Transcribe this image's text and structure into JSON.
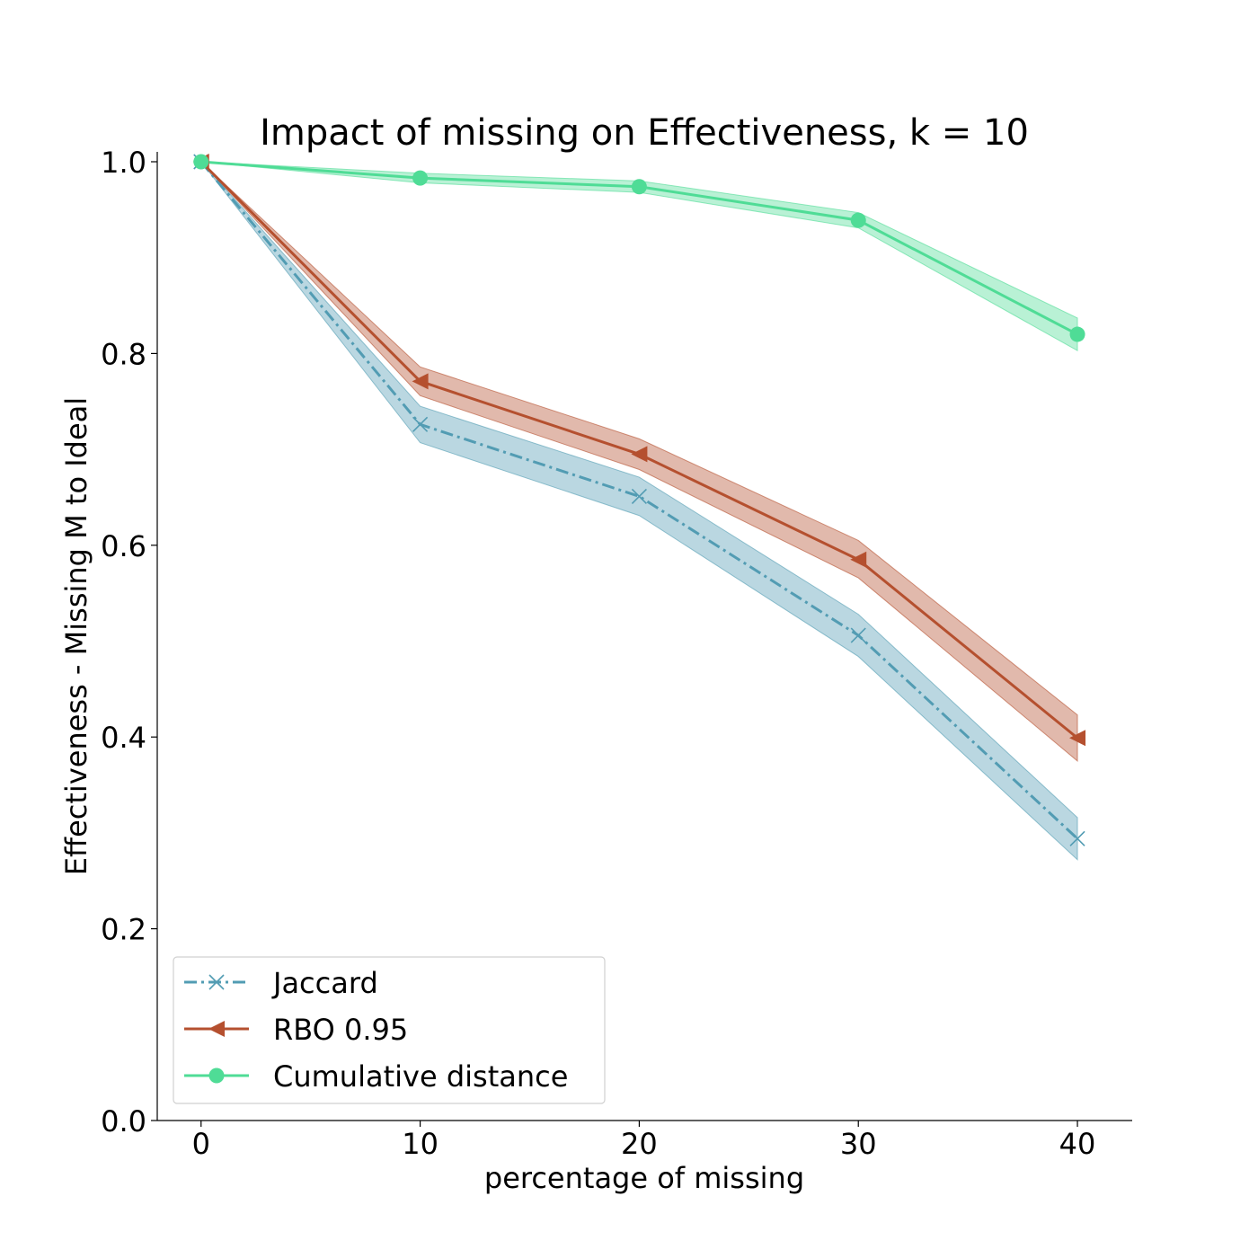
{
  "chart_data": {
    "type": "line",
    "title": "Impact of missing on Effectiveness, k = 10",
    "xlabel": "percentage of missing",
    "ylabel": "Effectiveness - Missing M to Ideal",
    "x": [
      0,
      10,
      20,
      30,
      40
    ],
    "xlim": [
      -2,
      42.5
    ],
    "ylim": [
      0.0,
      1.0
    ],
    "xticks": [
      0,
      10,
      20,
      30,
      40
    ],
    "yticks": [
      0.0,
      0.2,
      0.4,
      0.6,
      0.8,
      1.0
    ],
    "xtick_labels": [
      "0",
      "10",
      "20",
      "30",
      "40"
    ],
    "ytick_labels": [
      "0.0",
      "0.2",
      "0.4",
      "0.6",
      "0.8",
      "1.0"
    ],
    "grid": false,
    "legend_position": "lower-left",
    "series": [
      {
        "name": "Jaccard",
        "color": "#529cb3",
        "line_style": "dashdot",
        "marker": "x",
        "values": [
          1.0,
          0.726,
          0.651,
          0.506,
          0.294
        ],
        "lower": [
          1.0,
          0.707,
          0.631,
          0.484,
          0.272
        ],
        "upper": [
          1.0,
          0.745,
          0.671,
          0.528,
          0.316
        ]
      },
      {
        "name": "RBO 0.95",
        "color": "#b5502f",
        "line_style": "solid",
        "marker": "triangle-left",
        "values": [
          1.0,
          0.771,
          0.695,
          0.585,
          0.399
        ],
        "lower": [
          1.0,
          0.756,
          0.679,
          0.566,
          0.375
        ],
        "upper": [
          1.0,
          0.786,
          0.711,
          0.605,
          0.423
        ]
      },
      {
        "name": "Cumulative distance",
        "color": "#4fdc96",
        "line_style": "solid",
        "marker": "circle",
        "values": [
          1.0,
          0.983,
          0.974,
          0.939,
          0.82
        ],
        "lower": [
          1.0,
          0.978,
          0.968,
          0.931,
          0.803
        ],
        "upper": [
          1.0,
          0.988,
          0.98,
          0.947,
          0.837
        ]
      }
    ]
  }
}
